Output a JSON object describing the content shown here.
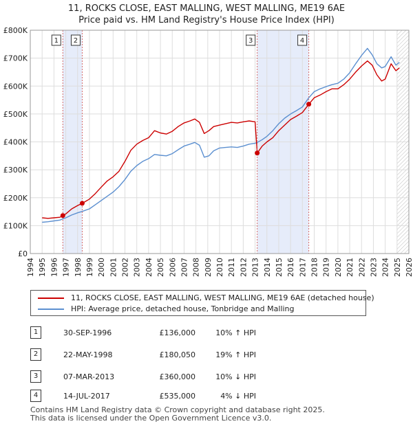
{
  "title_line1": "11, ROCKS CLOSE, EAST MALLING, WEST MALLING, ME19 6AE",
  "title_line2": "Price paid vs. HM Land Registry's House Price Index (HPI)",
  "chart_data": {
    "type": "line",
    "title": "11, ROCKS CLOSE, EAST MALLING, WEST MALLING, ME19 6AE",
    "subtitle": "Price paid vs. HM Land Registry's House Price Index (HPI)",
    "xlabel": "",
    "ylabel": "",
    "xlim": [
      1994,
      2026
    ],
    "ylim": [
      0,
      800000
    ],
    "x_ticks": [
      1994,
      1995,
      1996,
      1997,
      1998,
      1999,
      2000,
      2001,
      2002,
      2003,
      2004,
      2005,
      2006,
      2007,
      2008,
      2009,
      2010,
      2011,
      2012,
      2013,
      2014,
      2015,
      2016,
      2017,
      2018,
      2019,
      2020,
      2021,
      2022,
      2023,
      2024,
      2025,
      2026
    ],
    "y_ticks": [
      {
        "value": 0,
        "label": "£0"
      },
      {
        "value": 100000,
        "label": "£100K"
      },
      {
        "value": 200000,
        "label": "£200K"
      },
      {
        "value": 300000,
        "label": "£300K"
      },
      {
        "value": 400000,
        "label": "£400K"
      },
      {
        "value": 500000,
        "label": "£500K"
      },
      {
        "value": 600000,
        "label": "£600K"
      },
      {
        "value": 700000,
        "label": "£700K"
      },
      {
        "value": 800000,
        "label": "£800K"
      }
    ],
    "grid": true,
    "shaded_periods": [
      [
        1996.75,
        1998.39
      ],
      [
        2013.18,
        2017.54
      ]
    ],
    "future_hatch_from": 2025.0,
    "series": [
      {
        "name": "11, ROCKS CLOSE, EAST MALLING, WEST MALLING, ME19 6AE (detached house)",
        "color": "#cc0000",
        "x": [
          1995.0,
          1995.5,
          1996.0,
          1996.5,
          1996.75,
          1997.0,
          1997.5,
          1998.0,
          1998.39,
          1999.0,
          1999.5,
          2000.0,
          2000.5,
          2001.0,
          2001.5,
          2002.0,
          2002.5,
          2003.0,
          2003.5,
          2004.0,
          2004.5,
          2005.0,
          2005.5,
          2006.0,
          2006.5,
          2007.0,
          2007.5,
          2007.9,
          2008.3,
          2008.7,
          2009.1,
          2009.5,
          2010.0,
          2010.5,
          2011.0,
          2011.5,
          2012.0,
          2012.5,
          2013.0,
          2013.18,
          2013.6,
          2014.0,
          2014.5,
          2015.0,
          2015.5,
          2016.0,
          2016.5,
          2017.0,
          2017.54,
          2018.0,
          2018.5,
          2019.0,
          2019.5,
          2020.0,
          2020.5,
          2021.0,
          2021.5,
          2022.0,
          2022.5,
          2022.9,
          2023.3,
          2023.7,
          2024.0,
          2024.5,
          2024.9,
          2025.2
        ],
        "values": [
          128000,
          126000,
          128000,
          130000,
          136000,
          142000,
          160000,
          172000,
          180050,
          195000,
          215000,
          238000,
          260000,
          275000,
          295000,
          330000,
          370000,
          392000,
          405000,
          415000,
          440000,
          432000,
          428000,
          438000,
          455000,
          468000,
          475000,
          482000,
          470000,
          430000,
          440000,
          455000,
          460000,
          465000,
          470000,
          468000,
          472000,
          475000,
          472000,
          360000,
          385000,
          400000,
          415000,
          440000,
          460000,
          480000,
          492000,
          505000,
          535000,
          558000,
          568000,
          580000,
          590000,
          590000,
          605000,
          625000,
          650000,
          672000,
          690000,
          675000,
          640000,
          618000,
          625000,
          680000,
          655000,
          665000
        ]
      },
      {
        "name": "HPI: Average price, detached house, Tonbridge and Malling",
        "color": "#5b8fd0",
        "x": [
          1995.0,
          1995.5,
          1996.0,
          1996.5,
          1996.75,
          1997.0,
          1997.5,
          1998.0,
          1998.39,
          1999.0,
          1999.5,
          2000.0,
          2000.5,
          2001.0,
          2001.5,
          2002.0,
          2002.5,
          2003.0,
          2003.5,
          2004.0,
          2004.5,
          2005.0,
          2005.5,
          2006.0,
          2006.5,
          2007.0,
          2007.5,
          2007.9,
          2008.3,
          2008.7,
          2009.1,
          2009.5,
          2010.0,
          2010.5,
          2011.0,
          2011.5,
          2012.0,
          2012.5,
          2013.0,
          2013.18,
          2013.6,
          2014.0,
          2014.5,
          2015.0,
          2015.5,
          2016.0,
          2016.5,
          2017.0,
          2017.54,
          2018.0,
          2018.5,
          2019.0,
          2019.5,
          2020.0,
          2020.5,
          2021.0,
          2021.5,
          2022.0,
          2022.5,
          2022.9,
          2023.3,
          2023.7,
          2024.0,
          2024.5,
          2024.9,
          2025.2
        ],
        "values": [
          112000,
          114000,
          117000,
          120000,
          124000,
          128000,
          138000,
          146000,
          151000,
          160000,
          175000,
          190000,
          205000,
          220000,
          240000,
          265000,
          295000,
          315000,
          330000,
          340000,
          355000,
          352000,
          350000,
          358000,
          372000,
          385000,
          392000,
          398000,
          388000,
          345000,
          350000,
          368000,
          378000,
          380000,
          382000,
          380000,
          385000,
          392000,
          395000,
          398000,
          408000,
          420000,
          440000,
          465000,
          485000,
          500000,
          512000,
          525000,
          558000,
          580000,
          590000,
          598000,
          605000,
          610000,
          625000,
          648000,
          680000,
          710000,
          735000,
          712000,
          680000,
          665000,
          670000,
          705000,
          675000,
          685000
        ]
      }
    ],
    "sales": [
      {
        "label": "1",
        "x": 1996.75,
        "value": 136000
      },
      {
        "label": "2",
        "x": 1998.39,
        "value": 180050
      },
      {
        "label": "3",
        "x": 2013.18,
        "value": 360000
      },
      {
        "label": "4",
        "x": 2017.54,
        "value": 535000
      }
    ]
  },
  "legend": {
    "property_label": "11, ROCKS CLOSE, EAST MALLING, WEST MALLING, ME19 6AE (detached house)",
    "hpi_label": "HPI: Average price, detached house, Tonbridge and Malling"
  },
  "sales_table": [
    {
      "num": "1",
      "date": "30-SEP-1996",
      "price": "£136,000",
      "hpi": "10% ↑ HPI"
    },
    {
      "num": "2",
      "date": "22-MAY-1998",
      "price": "£180,050",
      "hpi": "19% ↑ HPI"
    },
    {
      "num": "3",
      "date": "07-MAR-2013",
      "price": "£360,000",
      "hpi": "10% ↓ HPI"
    },
    {
      "num": "4",
      "date": "14-JUL-2017",
      "price": "£535,000",
      "hpi": "4% ↓ HPI"
    }
  ],
  "footer_line1": "Contains HM Land Registry data © Crown copyright and database right 2025.",
  "footer_line2": "This data is licensed under the Open Government Licence v3.0."
}
